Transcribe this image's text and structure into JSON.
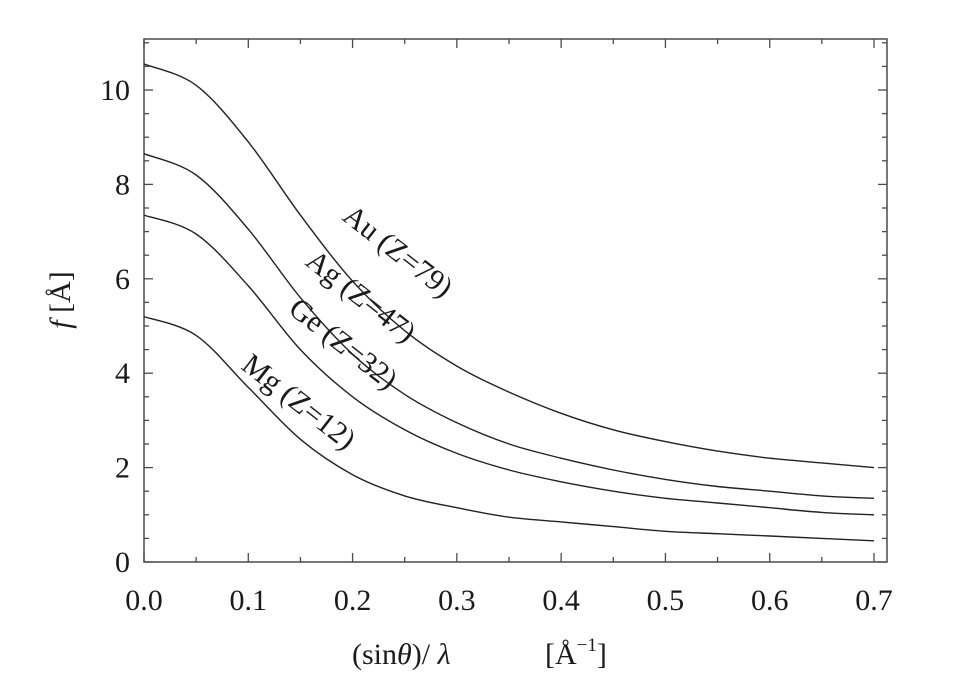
{
  "chart_data": {
    "type": "line",
    "title": "",
    "xlabel": {
      "main": "(sin",
      "theta": "θ",
      "rest": ")/ ",
      "lambda": "λ",
      "unit_open": "[Å",
      "unit_sup": "−1",
      "unit_close": "]"
    },
    "ylabel": {
      "var": "f",
      "unit": " [Å]"
    },
    "xlim": [
      0,
      0.7
    ],
    "ylim": [
      0,
      11
    ],
    "xticks": [
      "0.0",
      "0.1",
      "0.2",
      "0.3",
      "0.4",
      "0.5",
      "0.6",
      "0.7"
    ],
    "yticks": [
      "0",
      "2",
      "4",
      "6",
      "8",
      "10"
    ],
    "x": [
      0.0,
      0.05,
      0.1,
      0.15,
      0.2,
      0.25,
      0.3,
      0.35,
      0.4,
      0.45,
      0.5,
      0.55,
      0.6,
      0.65,
      0.7
    ],
    "series": [
      {
        "name": "Au (Z=79)",
        "values": [
          10.55,
          10.1,
          8.9,
          7.35,
          5.95,
          4.9,
          4.15,
          3.6,
          3.15,
          2.8,
          2.55,
          2.35,
          2.2,
          2.1,
          2.0
        ]
      },
      {
        "name": "Ag (Z=47)",
        "values": [
          8.65,
          8.2,
          7.05,
          5.6,
          4.4,
          3.55,
          2.95,
          2.5,
          2.2,
          1.95,
          1.75,
          1.6,
          1.5,
          1.4,
          1.35
        ]
      },
      {
        "name": "Ge (Z=32)",
        "values": [
          7.35,
          6.95,
          5.85,
          4.5,
          3.5,
          2.8,
          2.3,
          1.95,
          1.7,
          1.5,
          1.35,
          1.25,
          1.15,
          1.05,
          1.0
        ]
      },
      {
        "name": "Mg (Z=12)",
        "values": [
          5.2,
          4.8,
          3.7,
          2.6,
          1.85,
          1.4,
          1.15,
          0.95,
          0.85,
          0.75,
          0.65,
          0.6,
          0.55,
          0.5,
          0.45
        ]
      }
    ],
    "grid": false,
    "legend": "inline labels along curves"
  }
}
